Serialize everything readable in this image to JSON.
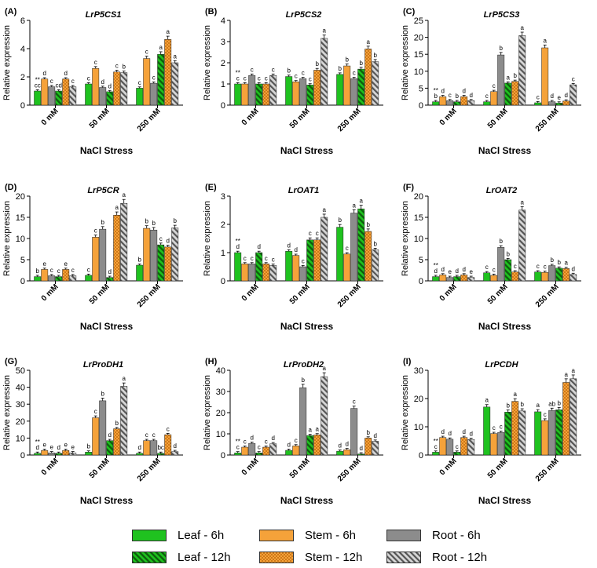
{
  "series_names": [
    "Leaf - 6h",
    "Stem - 6h",
    "Root - 6h",
    "Leaf - 12h",
    "Stem - 12h",
    "Root - 12h"
  ],
  "colors": {
    "leaf": "#1fc21f",
    "stem": "#f5a23a",
    "root": "#8c8c8c",
    "leaf_dark": "#0d5f0d",
    "stem_dot": "#b35a00",
    "root_stripe": "#555555"
  },
  "chart_data": [
    {
      "type": "bar",
      "panel": "(A)",
      "title": "LrP5CS1",
      "xlabel": "NaCl Stress",
      "ylabel": "Relative expression",
      "categories": [
        "0 mM",
        "50 mM",
        "250 mM"
      ],
      "ylim": [
        0,
        6
      ],
      "yticks": [
        0,
        2,
        4,
        6
      ],
      "series": [
        {
          "name": "Leaf - 6h",
          "values": [
            1.0,
            1.5,
            1.2
          ],
          "labels": [
            "**\ncc",
            "c",
            "c"
          ]
        },
        {
          "name": "Stem - 6h",
          "values": [
            1.85,
            2.6,
            3.3
          ],
          "labels": [
            "d",
            "c",
            "c"
          ]
        },
        {
          "name": "Root - 6h",
          "values": [
            1.3,
            1.25,
            1.55
          ],
          "labels": [
            "c",
            "d",
            "c"
          ]
        },
        {
          "name": "Leaf - 12h",
          "values": [
            1.0,
            0.95,
            3.6
          ],
          "labels": [
            "cd",
            "d",
            "a"
          ]
        },
        {
          "name": "Stem - 12h",
          "values": [
            1.85,
            2.35,
            4.65
          ],
          "labels": [
            "d",
            "c",
            "a"
          ]
        },
        {
          "name": "Root - 12h",
          "values": [
            1.3,
            2.3,
            3.0
          ],
          "labels": [
            "c",
            "b",
            "a"
          ]
        }
      ]
    },
    {
      "type": "bar",
      "panel": "(B)",
      "title": "LrP5CS2",
      "xlabel": "NaCl Stress",
      "ylabel": "Relative expression",
      "categories": [
        "0 mM",
        "50 mM",
        "250 mM"
      ],
      "ylim": [
        0,
        4
      ],
      "yticks": [
        0,
        1,
        2,
        3,
        4
      ],
      "series": [
        {
          "name": "Leaf - 6h",
          "values": [
            1.0,
            1.35,
            1.45
          ],
          "labels": [
            "**\nc",
            "b",
            "b"
          ]
        },
        {
          "name": "Stem - 6h",
          "values": [
            1.0,
            1.1,
            1.85
          ],
          "labels": [
            "c",
            "c",
            "b"
          ]
        },
        {
          "name": "Root - 6h",
          "values": [
            1.4,
            1.25,
            1.25
          ],
          "labels": [
            "c",
            "c",
            "c"
          ]
        },
        {
          "name": "Leaf - 12h",
          "values": [
            1.0,
            0.95,
            1.7
          ],
          "labels": [
            "c",
            "c",
            "b"
          ]
        },
        {
          "name": "Stem - 12h",
          "values": [
            1.0,
            1.65,
            2.65
          ],
          "labels": [
            "c",
            "b",
            "a"
          ]
        },
        {
          "name": "Root - 12h",
          "values": [
            1.4,
            3.15,
            2.05
          ],
          "labels": [
            "c",
            "a",
            "b"
          ]
        }
      ]
    },
    {
      "type": "bar",
      "panel": "(C)",
      "title": "LrP5CS3",
      "xlabel": "NaCl Stress",
      "ylabel": "Relative expression",
      "categories": [
        "0 mM",
        "50 mM",
        "250 mM"
      ],
      "ylim": [
        0,
        25
      ],
      "yticks": [
        0,
        5,
        10,
        15,
        20,
        25
      ],
      "series": [
        {
          "name": "Leaf - 6h",
          "values": [
            1.0,
            1.0,
            0.7
          ],
          "labels": [
            "**\nb",
            "c",
            "c"
          ]
        },
        {
          "name": "Stem - 6h",
          "values": [
            2.5,
            4.0,
            16.9
          ],
          "labels": [
            "d",
            "c",
            "a"
          ]
        },
        {
          "name": "Root - 6h",
          "values": [
            1.3,
            14.8,
            1.0
          ],
          "labels": [
            "c",
            "b",
            "d"
          ]
        },
        {
          "name": "Leaf - 12h",
          "values": [
            1.0,
            6.5,
            0.6
          ],
          "labels": [
            "b",
            "a",
            "e"
          ]
        },
        {
          "name": "Stem - 12h",
          "values": [
            2.5,
            7.0,
            1.2
          ],
          "labels": [
            "d",
            "b",
            "d"
          ]
        },
        {
          "name": "Root - 12h",
          "values": [
            1.3,
            20.5,
            6.0
          ],
          "labels": [
            "d",
            "a",
            "c"
          ]
        }
      ]
    },
    {
      "type": "bar",
      "panel": "(D)",
      "title": "LrP5CR",
      "xlabel": "NaCl Stress",
      "ylabel": "Relative expression",
      "categories": [
        "0 mM",
        "50 mM",
        "250 mM"
      ],
      "ylim": [
        0,
        20
      ],
      "yticks": [
        0,
        5,
        10,
        15,
        20
      ],
      "series": [
        {
          "name": "Leaf - 6h",
          "values": [
            1.0,
            1.3,
            3.7
          ],
          "labels": [
            "b",
            "c",
            "b"
          ]
        },
        {
          "name": "Stem - 6h",
          "values": [
            2.7,
            10.3,
            12.4
          ],
          "labels": [
            "e",
            "c",
            "b"
          ]
        },
        {
          "name": "Root - 6h",
          "values": [
            1.2,
            12.2,
            12.0
          ],
          "labels": [
            "c",
            "b",
            "b"
          ]
        },
        {
          "name": "Leaf - 12h",
          "values": [
            1.0,
            0.8,
            8.5
          ],
          "labels": [
            "c",
            "d",
            "c"
          ]
        },
        {
          "name": "Stem - 12h",
          "values": [
            2.7,
            15.5,
            8.0
          ],
          "labels": [
            "e",
            "a",
            "d"
          ]
        },
        {
          "name": "Root - 12h",
          "values": [
            1.2,
            18.3,
            12.5
          ],
          "labels": [
            "c",
            "a",
            "b"
          ]
        }
      ]
    },
    {
      "type": "bar",
      "panel": "(E)",
      "title": "LrOAT1",
      "xlabel": "NaCl Stress",
      "ylabel": "Relative expression",
      "categories": [
        "0 mM",
        "50 mM",
        "250 mM"
      ],
      "ylim": [
        0,
        3
      ],
      "yticks": [
        0,
        1,
        2,
        3
      ],
      "series": [
        {
          "name": "Leaf - 6h",
          "values": [
            1.0,
            1.05,
            1.9
          ],
          "labels": [
            "**\nd",
            "d",
            "b"
          ]
        },
        {
          "name": "Stem - 6h",
          "values": [
            0.6,
            0.9,
            0.95
          ],
          "labels": [
            "c",
            "d",
            "c"
          ]
        },
        {
          "name": "Root - 6h",
          "values": [
            0.6,
            0.5,
            2.4
          ],
          "labels": [
            "c",
            "c",
            "a"
          ]
        },
        {
          "name": "Leaf - 12h",
          "values": [
            1.0,
            1.45,
            2.55
          ],
          "labels": [
            "d",
            "c",
            "a"
          ]
        },
        {
          "name": "Stem - 12h",
          "values": [
            0.6,
            1.45,
            1.75
          ],
          "labels": [
            "c",
            "c",
            "b"
          ]
        },
        {
          "name": "Root - 12h",
          "values": [
            0.55,
            2.25,
            1.1
          ],
          "labels": [
            "c",
            "a",
            "b"
          ]
        }
      ]
    },
    {
      "type": "bar",
      "panel": "(F)",
      "title": "LrOAT2",
      "xlabel": "NaCl Stress",
      "ylabel": "Relative expression",
      "categories": [
        "0 mM",
        "50 mM",
        "250 mM"
      ],
      "ylim": [
        0,
        20
      ],
      "yticks": [
        0,
        5,
        10,
        15,
        20
      ],
      "series": [
        {
          "name": "Leaf - 6h",
          "values": [
            1.0,
            1.9,
            2.1
          ],
          "labels": [
            "**\nd",
            "c",
            "c"
          ]
        },
        {
          "name": "Stem - 6h",
          "values": [
            1.4,
            1.3,
            2.0
          ],
          "labels": [
            "d",
            "c",
            "c"
          ]
        },
        {
          "name": "Root - 6h",
          "values": [
            0.8,
            7.9,
            3.6
          ],
          "labels": [
            "e",
            "b",
            "b"
          ]
        },
        {
          "name": "Leaf - 12h",
          "values": [
            1.0,
            5.0,
            3.0
          ],
          "labels": [
            "d",
            "b",
            "b"
          ]
        },
        {
          "name": "Stem - 12h",
          "values": [
            1.4,
            2.1,
            2.9
          ],
          "labels": [
            "d",
            "c",
            "a"
          ]
        },
        {
          "name": "Root - 12h",
          "values": [
            0.8,
            16.7,
            1.5
          ],
          "labels": [
            "e",
            "a",
            "d"
          ]
        }
      ]
    },
    {
      "type": "bar",
      "panel": "(G)",
      "title": "LrProDH1",
      "xlabel": "NaCl Stress",
      "ylabel": "Relative expression",
      "categories": [
        "0 mM",
        "50 mM",
        "250 mM"
      ],
      "ylim": [
        0,
        50
      ],
      "yticks": [
        0,
        10,
        20,
        30,
        40,
        50
      ],
      "series": [
        {
          "name": "Leaf - 6h",
          "values": [
            1.0,
            1.7,
            1.0
          ],
          "labels": [
            "**\nd",
            "b",
            "d"
          ]
        },
        {
          "name": "Stem - 6h",
          "values": [
            2.7,
            22.0,
            8.5
          ],
          "labels": [
            "e",
            "c",
            "c"
          ]
        },
        {
          "name": "Root - 6h",
          "values": [
            1.3,
            32.0,
            8.5
          ],
          "labels": [
            "e",
            "b",
            "c"
          ]
        },
        {
          "name": "Leaf - 12h",
          "values": [
            1.0,
            8.5,
            1.0
          ],
          "labels": [
            "d",
            "d",
            "bc"
          ]
        },
        {
          "name": "Stem - 12h",
          "values": [
            2.7,
            15.5,
            12.0
          ],
          "labels": [
            "e",
            "b",
            "c"
          ]
        },
        {
          "name": "Root - 12h",
          "values": [
            1.3,
            40.5,
            2.0
          ],
          "labels": [
            "e",
            "a",
            "d"
          ]
        }
      ]
    },
    {
      "type": "bar",
      "panel": "(H)",
      "title": "LrProDH2",
      "xlabel": "NaCl Stress",
      "ylabel": "Relative expression",
      "categories": [
        "0 mM",
        "50 mM",
        "250 mM"
      ],
      "ylim": [
        0,
        40
      ],
      "yticks": [
        0,
        10,
        20,
        30,
        40
      ],
      "series": [
        {
          "name": "Leaf - 6h",
          "values": [
            1.0,
            2.2,
            1.8
          ],
          "labels": [
            "**\nc",
            "d",
            "d"
          ]
        },
        {
          "name": "Stem - 6h",
          "values": [
            3.7,
            4.3,
            2.5
          ],
          "labels": [
            "c",
            "c",
            "d"
          ]
        },
        {
          "name": "Root - 6h",
          "values": [
            5.5,
            31.8,
            22.0
          ],
          "labels": [
            "d",
            "b",
            "c"
          ]
        },
        {
          "name": "Leaf - 12h",
          "values": [
            1.0,
            9.2,
            0.5
          ],
          "labels": [
            "c",
            "a",
            "d"
          ]
        },
        {
          "name": "Stem - 12h",
          "values": [
            3.7,
            9.5,
            8.0
          ],
          "labels": [
            "c",
            "a",
            "b"
          ]
        },
        {
          "name": "Root - 12h",
          "values": [
            5.3,
            37.0,
            6.5
          ],
          "labels": [
            "d",
            "a",
            "d"
          ]
        }
      ]
    },
    {
      "type": "bar",
      "panel": "(I)",
      "title": "LrPCDH",
      "xlabel": "NaCl Stress",
      "ylabel": "Relative expression",
      "categories": [
        "0 mM",
        "50 mM",
        "250 mM"
      ],
      "ylim": [
        0,
        30
      ],
      "yticks": [
        0,
        10,
        20,
        30
      ],
      "series": [
        {
          "name": "Leaf - 6h",
          "values": [
            1.0,
            17.0,
            15.3
          ],
          "labels": [
            "**\nc",
            "a",
            "a"
          ]
        },
        {
          "name": "Stem - 6h",
          "values": [
            6.2,
            7.6,
            12.2
          ],
          "labels": [
            "d",
            "c",
            "c"
          ]
        },
        {
          "name": "Root - 6h",
          "values": [
            5.6,
            8.0,
            15.8
          ],
          "labels": [
            "d",
            "c",
            "ab"
          ]
        },
        {
          "name": "Leaf - 12h",
          "values": [
            1.0,
            15.2,
            16.0
          ],
          "labels": [
            "c",
            "b",
            "b"
          ]
        },
        {
          "name": "Stem - 12h",
          "values": [
            6.2,
            19.0,
            25.7
          ],
          "labels": [
            "d",
            "a",
            "a"
          ]
        },
        {
          "name": "Root - 12h",
          "values": [
            5.5,
            15.6,
            27.0
          ],
          "labels": [
            "d",
            "b",
            "a"
          ]
        }
      ]
    }
  ]
}
